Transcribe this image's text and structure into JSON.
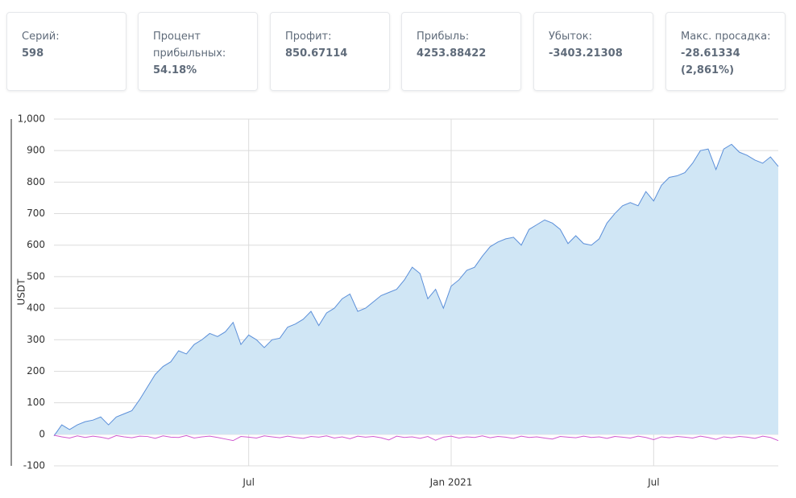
{
  "cards": [
    {
      "label": "Серий:",
      "value": "598"
    },
    {
      "label": "Процент прибыльных:",
      "value": "54.18%"
    },
    {
      "label": "Профит:",
      "value": "850.67114"
    },
    {
      "label": "Прибыль:",
      "value": "4253.88422"
    },
    {
      "label": "Убыток:",
      "value": "-3403.21308"
    },
    {
      "label": "Макс. просадка:",
      "value": "-28.61334 (2,861%)"
    }
  ],
  "chart_data": {
    "type": "area",
    "ylabel": "USDT",
    "categories": [
      null,
      null,
      null,
      null,
      null,
      null,
      null,
      null,
      null,
      null,
      null,
      null,
      null,
      null,
      null,
      null,
      null,
      null,
      null,
      null,
      null,
      null,
      null,
      null,
      null,
      "Jul",
      null,
      null,
      null,
      null,
      null,
      null,
      null,
      null,
      null,
      null,
      null,
      null,
      null,
      null,
      null,
      null,
      null,
      null,
      null,
      null,
      null,
      null,
      null,
      null,
      null,
      "Jan 2021",
      null,
      null,
      null,
      null,
      null,
      null,
      null,
      null,
      null,
      null,
      null,
      null,
      null,
      null,
      null,
      null,
      null,
      null,
      null,
      null,
      null,
      null,
      null,
      null,
      null,
      "Jul",
      null,
      null,
      null,
      null,
      null,
      null,
      null,
      null,
      null,
      null,
      null,
      null,
      null,
      null,
      null,
      null
    ],
    "series": [
      {
        "color": "#5b8fd9",
        "fill": "#d0e6f5",
        "values": [
          -5,
          30,
          15,
          30,
          40,
          45,
          55,
          30,
          55,
          65,
          75,
          110,
          150,
          190,
          215,
          230,
          265,
          255,
          285,
          300,
          320,
          310,
          325,
          355,
          285,
          315,
          300,
          275,
          300,
          305,
          340,
          350,
          365,
          390,
          345,
          385,
          400,
          430,
          445,
          390,
          400,
          420,
          440,
          450,
          460,
          490,
          530,
          510,
          430,
          460,
          400,
          470,
          490,
          520,
          530,
          565,
          595,
          610,
          620,
          625,
          600,
          650,
          665,
          680,
          670,
          650,
          605,
          630,
          605,
          600,
          620,
          670,
          700,
          725,
          735,
          725,
          770,
          740,
          790,
          815,
          820,
          830,
          860,
          900,
          905,
          840,
          905,
          920,
          895,
          885,
          870,
          860,
          880,
          850
        ]
      },
      {
        "color": "#d05ad0",
        "values": [
          -3,
          -8,
          -12,
          -5,
          -10,
          -6,
          -9,
          -14,
          -4,
          -8,
          -11,
          -6,
          -7,
          -13,
          -5,
          -9,
          -10,
          -4,
          -12,
          -8,
          -6,
          -10,
          -15,
          -20,
          -7,
          -9,
          -12,
          -5,
          -8,
          -11,
          -6,
          -10,
          -13,
          -7,
          -9,
          -5,
          -12,
          -8,
          -14,
          -6,
          -9,
          -7,
          -11,
          -18,
          -6,
          -10,
          -8,
          -13,
          -7,
          -19,
          -9,
          -6,
          -12,
          -8,
          -10,
          -5,
          -11,
          -7,
          -9,
          -13,
          -6,
          -10,
          -8,
          -12,
          -15,
          -7,
          -9,
          -11,
          -6,
          -10,
          -8,
          -13,
          -7,
          -9,
          -12,
          -6,
          -10,
          -17,
          -8,
          -11,
          -7,
          -9,
          -12,
          -6,
          -10,
          -16,
          -8,
          -11,
          -7,
          -9,
          -13,
          -6,
          -10,
          -20
        ]
      }
    ],
    "ylim": [
      -100,
      1000
    ],
    "yticks": [
      -100,
      0,
      100,
      200,
      300,
      400,
      500,
      600,
      700,
      800,
      900,
      {
        "value": 1000,
        "label": "1,000"
      }
    ],
    "grid": true
  }
}
